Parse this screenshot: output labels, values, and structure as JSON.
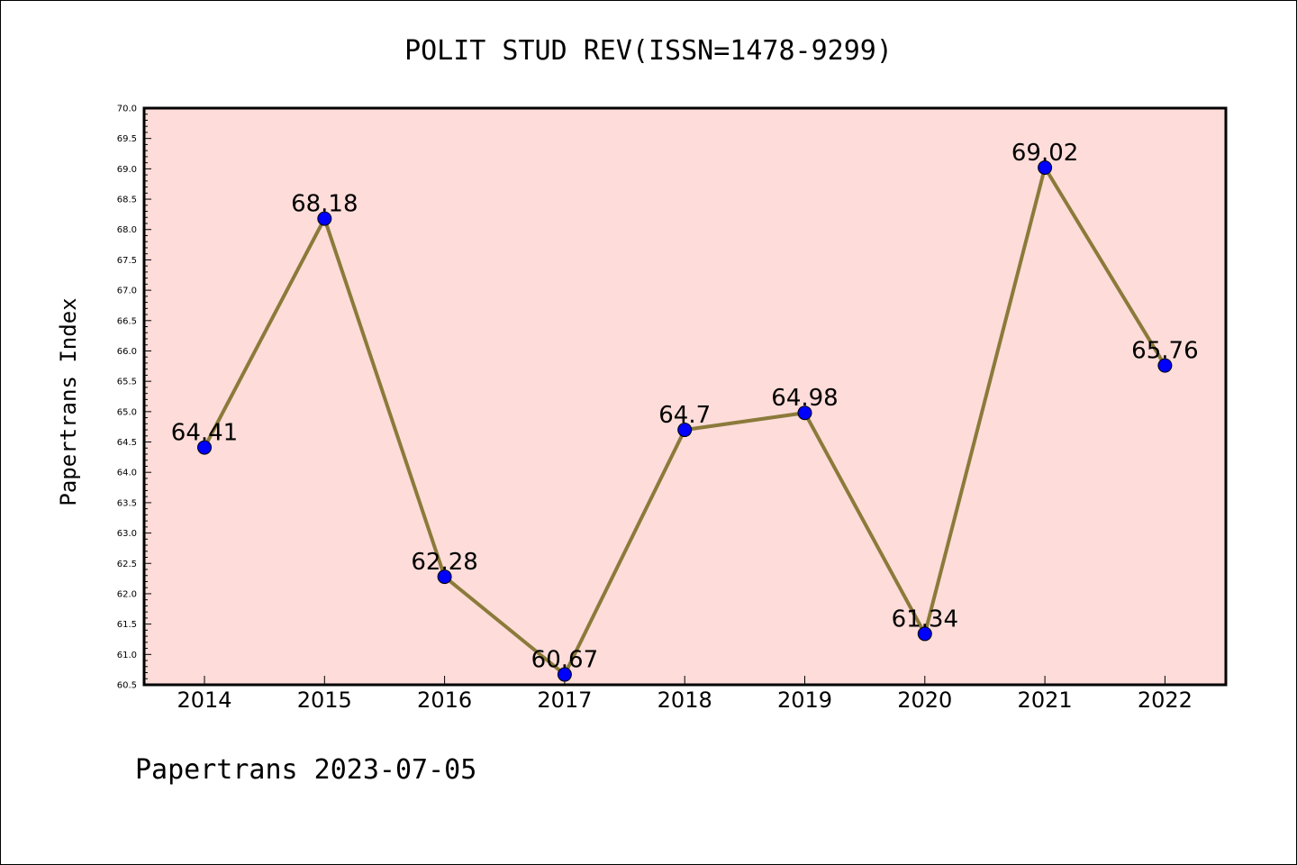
{
  "colors": {
    "plot_background": "#fddcd9",
    "line": "#8b7a3a",
    "marker": "#0000ff",
    "axis": "#000000"
  },
  "chart_data": {
    "type": "line",
    "title": "POLIT STUD REV(ISSN=1478-9299)",
    "xlabel": "",
    "ylabel": "Papertrans Index",
    "categories": [
      "2014",
      "2015",
      "2016",
      "2017",
      "2018",
      "2019",
      "2020",
      "2021",
      "2022"
    ],
    "series": [
      {
        "values": [
          64.41,
          68.18,
          62.28,
          60.67,
          64.7,
          64.98,
          61.34,
          69.02,
          65.76
        ],
        "labels": [
          "64.41",
          "68.18",
          "62.28",
          "60.67",
          "64.7",
          "64.98",
          "61.34",
          "69.02",
          "65.76"
        ]
      }
    ],
    "ylim": [
      60.5,
      70.0
    ],
    "yticks": [
      "60.5",
      "61.0",
      "61.5",
      "62.0",
      "62.5",
      "63.0",
      "63.5",
      "64.0",
      "64.5",
      "65.0",
      "65.5",
      "66.0",
      "66.5",
      "67.0",
      "67.5",
      "68.0",
      "68.5",
      "69.0",
      "69.5",
      "70.0"
    ],
    "grid": false,
    "legend": "none"
  },
  "footer": "Papertrans 2023-07-05"
}
